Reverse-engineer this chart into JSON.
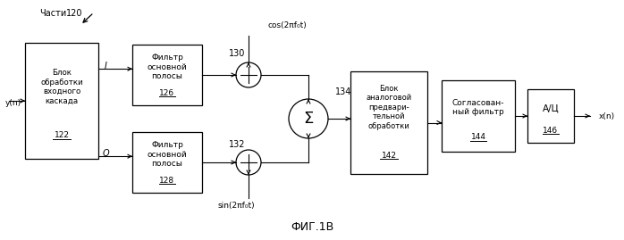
{
  "title": "ФИГ.1В",
  "bg_color": "#ffffff",
  "box_edge_color": "#000000",
  "text_color": "#000000",
  "box1_text": "Блок\nобработки\nвходного\nкаскада",
  "box1_num": "122",
  "box2_text": "Фильтр\nосновной\nполосы",
  "box2_num": "126",
  "box3_text": "Фильтр\nосновной\nполосы",
  "box3_num": "128",
  "box4_text": "Блок\nаналоговой\nпредвари-\nтельной\nобработки",
  "box4_num": "142",
  "box5_text": "Согласован-\nный фильтр",
  "box5_num": "144",
  "box6_text": "А/Ц",
  "box6_num": "146",
  "label_parts": "Части",
  "label_120": "120",
  "label_yn": "y(n)",
  "label_xn": "x(n)",
  "label_I": "I",
  "label_Q": "Q",
  "label_130": "130",
  "label_132": "132",
  "label_134": "134",
  "label_cos": "cos(2πf₀t)",
  "label_sin": "sin(2πf₀t)"
}
